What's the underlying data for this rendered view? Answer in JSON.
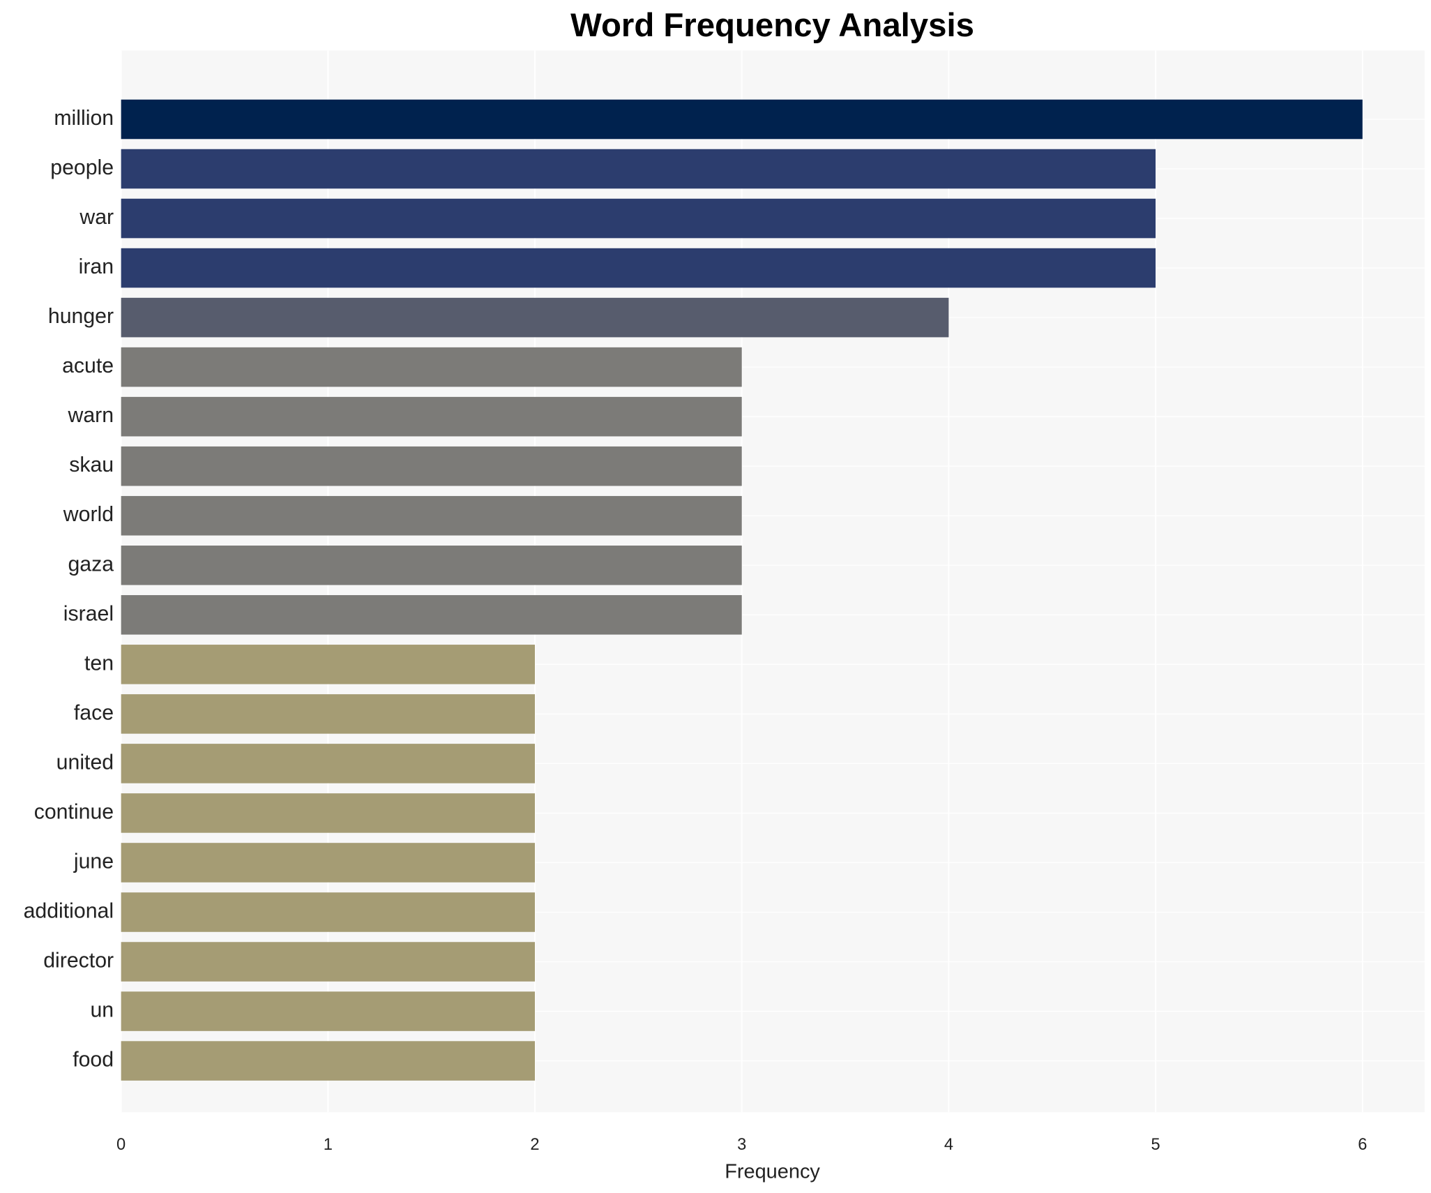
{
  "chart_data": {
    "type": "barh",
    "title": "Word Frequency Analysis",
    "x_label": "Frequency",
    "categories": [
      "million",
      "people",
      "war",
      "iran",
      "hunger",
      "acute",
      "warn",
      "skau",
      "world",
      "gaza",
      "israel",
      "ten",
      "face",
      "united",
      "continue",
      "june",
      "additional",
      "director",
      "un",
      "food"
    ],
    "values": [
      6,
      5,
      5,
      5,
      4,
      3,
      3,
      3,
      3,
      3,
      3,
      2,
      2,
      2,
      2,
      2,
      2,
      2,
      2,
      2
    ],
    "colors": [
      "#00224e",
      "#2c3d6e",
      "#2c3d6e",
      "#2c3d6e",
      "#575c6d",
      "#7c7b78",
      "#7c7b78",
      "#7c7b78",
      "#7c7b78",
      "#7c7b78",
      "#7c7b78",
      "#a59c74",
      "#a59c74",
      "#a59c74",
      "#a59c74",
      "#a59c74",
      "#a59c74",
      "#a59c74",
      "#a59c74",
      "#a59c74"
    ],
    "xlim": [
      0,
      6.3
    ],
    "xticks": [
      0,
      1,
      2,
      3,
      4,
      5,
      6
    ],
    "grid": true
  }
}
